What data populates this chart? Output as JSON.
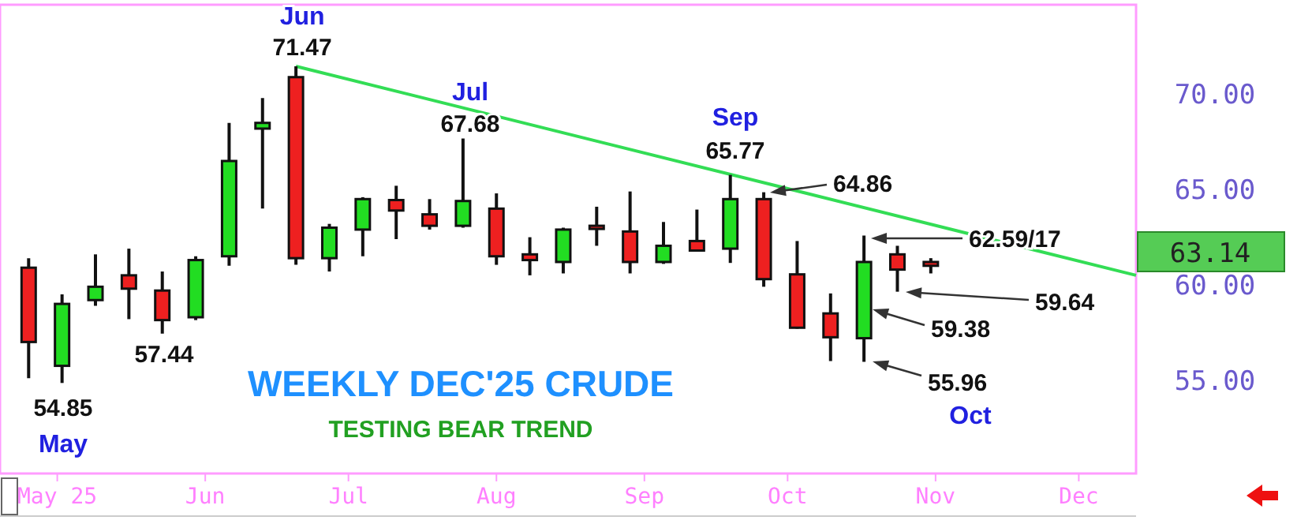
{
  "chart_data": {
    "type": "candlestick",
    "title": "WEEKLY DEC'25 CRUDE",
    "subtitle": "TESTING BEAR TREND",
    "x": [
      "2025-04-25",
      "2025-05-02",
      "2025-05-09",
      "2025-05-16",
      "2025-05-23",
      "2025-05-30",
      "2025-06-06",
      "2025-06-13",
      "2025-06-20",
      "2025-06-27",
      "2025-07-04",
      "2025-07-11",
      "2025-07-18",
      "2025-07-25",
      "2025-08-01",
      "2025-08-08",
      "2025-08-15",
      "2025-08-22",
      "2025-08-29",
      "2025-09-05",
      "2025-09-12",
      "2025-09-19",
      "2025-09-26",
      "2025-10-03",
      "2025-10-10",
      "2025-10-17",
      "2025-10-24",
      "2025-10-31"
    ],
    "ohlc": [
      [
        60.9,
        61.4,
        55.1,
        57.0
      ],
      [
        55.75,
        59.5,
        54.85,
        59.0
      ],
      [
        59.2,
        61.6,
        58.9,
        59.9
      ],
      [
        60.5,
        61.9,
        58.2,
        59.8
      ],
      [
        59.7,
        60.7,
        57.44,
        58.15
      ],
      [
        58.3,
        61.5,
        58.15,
        61.3
      ],
      [
        61.5,
        68.5,
        61.0,
        66.5
      ],
      [
        68.2,
        69.8,
        64.0,
        68.5
      ],
      [
        70.9,
        71.47,
        61.05,
        61.4
      ],
      [
        61.4,
        63.2,
        60.7,
        63.0
      ],
      [
        62.9,
        64.6,
        61.5,
        64.5
      ],
      [
        64.45,
        65.2,
        62.4,
        63.9
      ],
      [
        63.7,
        64.5,
        62.9,
        63.1
      ],
      [
        63.1,
        67.68,
        63.0,
        64.4
      ],
      [
        64.0,
        64.8,
        61.05,
        61.5
      ],
      [
        61.6,
        62.5,
        60.5,
        61.3
      ],
      [
        61.2,
        63.0,
        60.6,
        62.9
      ],
      [
        63.1,
        64.1,
        62.05,
        63.0
      ],
      [
        62.8,
        64.9,
        60.6,
        61.2
      ],
      [
        61.2,
        63.3,
        61.1,
        62.05
      ],
      [
        62.3,
        63.95,
        61.8,
        61.8
      ],
      [
        61.9,
        65.77,
        61.15,
        64.5
      ],
      [
        64.5,
        64.86,
        59.9,
        60.3
      ],
      [
        60.55,
        62.3,
        57.7,
        57.75
      ],
      [
        58.5,
        59.55,
        56.0,
        57.25
      ],
      [
        57.2,
        62.59,
        55.96,
        61.2
      ],
      [
        61.6,
        62.05,
        59.64,
        60.8
      ],
      [
        61.2,
        61.4,
        60.6,
        61.0
      ]
    ],
    "series": [
      {
        "type": "line",
        "color": "#33dd55",
        "x": [
          "2025-06-20",
          "2025-12-13"
        ],
        "values": [
          71.47,
          60.5
        ]
      }
    ],
    "xlim": [
      "2025-04-19",
      "2025-12-13"
    ],
    "xticks": [
      {
        "value": "2025-05-01",
        "label": "May 25"
      },
      {
        "value": "2025-06-01",
        "label": "Jun"
      },
      {
        "value": "2025-07-01",
        "label": "Jul"
      },
      {
        "value": "2025-08-01",
        "label": "Aug"
      },
      {
        "value": "2025-09-01",
        "label": "Sep"
      },
      {
        "value": "2025-10-01",
        "label": "Oct"
      },
      {
        "value": "2025-11-01",
        "label": "Nov"
      },
      {
        "value": "2025-12-01",
        "label": "Dec"
      }
    ],
    "ylim": [
      50.1,
      74.7
    ],
    "yticks": [
      {
        "value": 55,
        "label": "55.00"
      },
      {
        "value": 60,
        "label": "60.00"
      },
      {
        "value": 65,
        "label": "65.00"
      },
      {
        "value": 70,
        "label": "70.00"
      }
    ],
    "grid": false,
    "annotations": [
      {
        "text": "Jun",
        "x": "2025-06-20",
        "y": 71.47
      },
      {
        "text": "71.47",
        "x": "2025-06-20",
        "y": 71.47
      },
      "Jul",
      "67.68",
      "Sep",
      "65.77",
      "64.86",
      "62.59/17",
      "59.64",
      "59.38",
      "55.96",
      "Oct",
      "54.85",
      "May",
      "57.44",
      "63.14"
    ]
  }
}
